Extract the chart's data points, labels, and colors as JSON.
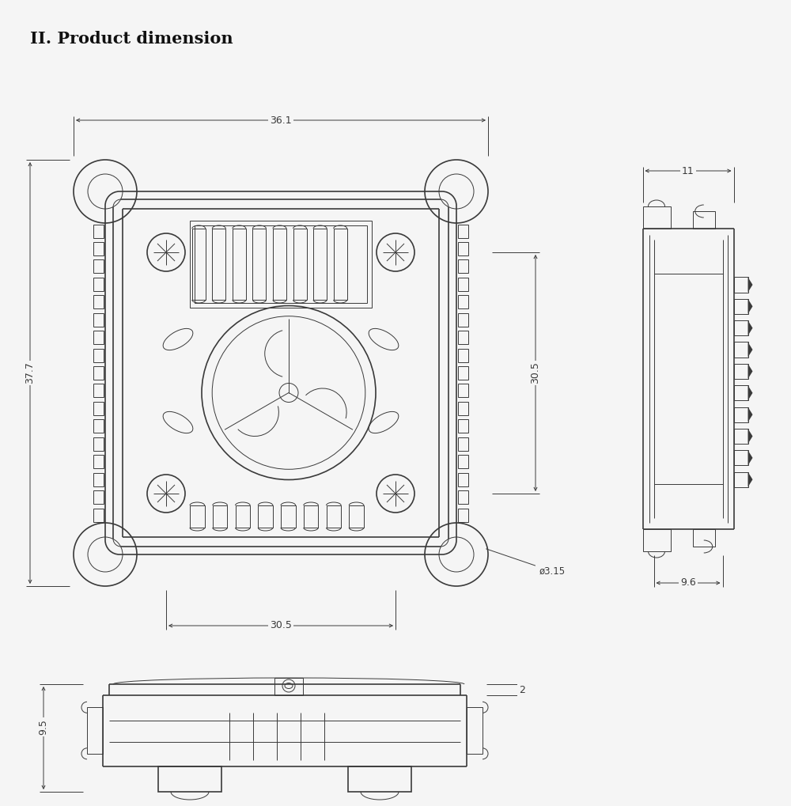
{
  "title": "II. Product dimension",
  "title_fontsize": 15,
  "line_color": "#3a3a3a",
  "bg_color": "#f5f5f5",
  "dims": {
    "top_width": "36.1",
    "total_height": "37.7",
    "mount_spacing": "30.5",
    "mount_height": "30.5",
    "screw_diameter": "ø3.15",
    "side_width": "11",
    "side_inner_width": "9.6",
    "bottom_thickness": "2",
    "bottom_height": "9.5"
  }
}
